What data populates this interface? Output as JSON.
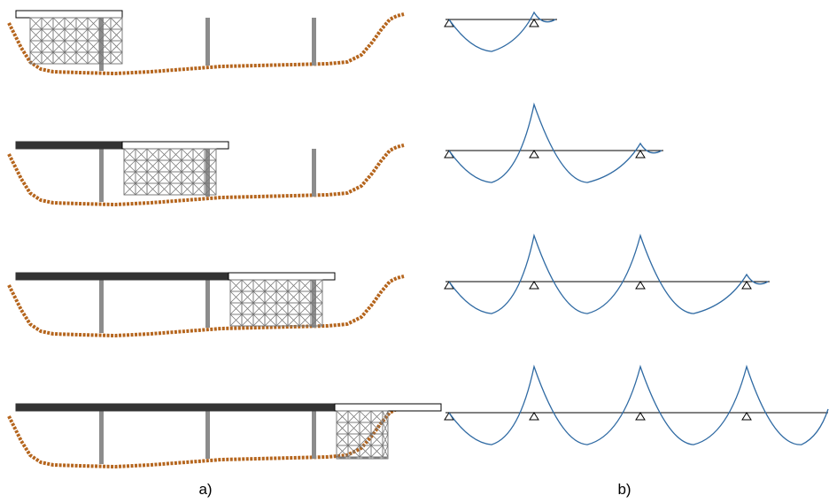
{
  "captions": {
    "left": "a)",
    "right": "b)"
  },
  "colors": {
    "ground": "#b5651d",
    "deck_cast": "#333333",
    "deck_form": "#ffffff",
    "pier": "#8c8c8c",
    "scaffold": "#777777",
    "moment_curve": "#2f6aa3",
    "beam_line": "#000000"
  },
  "stages": [
    {
      "stage": 1,
      "cast_spans": 0,
      "formwork_span": 1
    },
    {
      "stage": 2,
      "cast_spans": 1,
      "formwork_span": 2
    },
    {
      "stage": 3,
      "cast_spans": 2,
      "formwork_span": 3
    },
    {
      "stage": 4,
      "cast_spans": 3,
      "formwork_span": 4
    }
  ]
}
